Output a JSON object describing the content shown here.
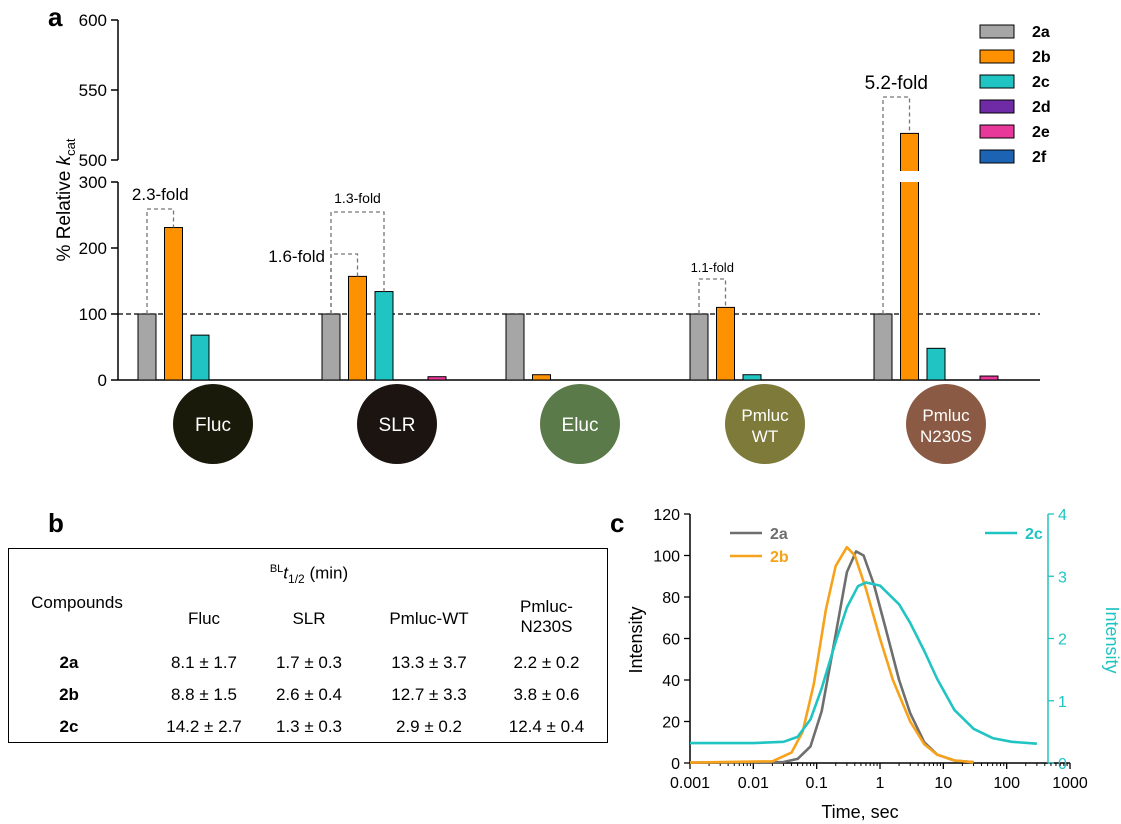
{
  "panel_labels": {
    "a": "a",
    "b": "b",
    "c": "c"
  },
  "chart_data": [
    {
      "type": "bar",
      "panel": "a",
      "categories": [
        "Fluc",
        "SLR",
        "Eluc",
        "Pmluc WT",
        "Pmluc N230S"
      ],
      "category_colors": [
        "#1a1a0a",
        "#1c1410",
        "#5a7a4a",
        "#7d7a3a",
        "#8a5a44"
      ],
      "series": [
        {
          "name": "2a",
          "color": "#a6a6a6",
          "values": [
            100,
            100,
            100,
            100,
            100
          ]
        },
        {
          "name": "2b",
          "color": "#fe9100",
          "values": [
            231,
            157,
            8,
            110,
            519
          ]
        },
        {
          "name": "2c",
          "color": "#20c4c2",
          "values": [
            68,
            134,
            0,
            8,
            48
          ]
        },
        {
          "name": "2d",
          "color": "#6f2aa6",
          "values": [
            0,
            0,
            0,
            0,
            0
          ]
        },
        {
          "name": "2e",
          "color": "#e8399b",
          "values": [
            0,
            5,
            0,
            0,
            6
          ]
        },
        {
          "name": "2f",
          "color": "#1d63b4",
          "values": [
            0,
            0,
            0,
            0,
            0
          ]
        }
      ],
      "ylabel_prefix": "% Relative ",
      "ylabel_italic": "k",
      "ylabel_sub": "cat",
      "y_ticks_lower": [
        "0",
        "100",
        "200",
        "300"
      ],
      "y_ticks_upper": [
        "500",
        "550",
        "600"
      ],
      "ylim_lower": [
        0,
        300
      ],
      "ylim_upper": [
        500,
        600
      ],
      "reference_line": 100,
      "annotations": [
        {
          "text": "2.3-fold",
          "category": 0,
          "from": "2a",
          "to": "2b"
        },
        {
          "text": "1.6-fold",
          "category": 1,
          "from": "2a",
          "to": "2b"
        },
        {
          "text": "1.3-fold",
          "category": 1,
          "from": "2a",
          "to": "2c"
        },
        {
          "text": "1.1-fold",
          "category": 3,
          "from": "2a",
          "to": "2b"
        },
        {
          "text": "5.2-fold",
          "category": 4,
          "from": "2a",
          "to": "2b"
        }
      ],
      "category_badges": [
        {
          "line1": "Fluc",
          "line2": ""
        },
        {
          "line1": "SLR",
          "line2": ""
        },
        {
          "line1": "Eluc",
          "line2": ""
        },
        {
          "line1": "Pmluc",
          "line2": "WT"
        },
        {
          "line1": "Pmluc",
          "line2": "N230S"
        }
      ]
    },
    {
      "type": "table",
      "panel": "b",
      "title_sup": "BL",
      "title_main": "t",
      "title_sub": "1/2",
      "title_unit": " (min)",
      "corner_label": "Compounds",
      "columns": [
        "Fluc",
        "SLR",
        "Pmluc-WT",
        "Pmluc-"
      ],
      "column_line2": [
        "",
        "",
        "",
        "N230S"
      ],
      "rows": [
        {
          "label": "2a",
          "cells": [
            "8.1 ± 1.7",
            "1.7 ± 0.3",
            "13.3 ± 3.7",
            "2.2 ± 0.2"
          ]
        },
        {
          "label": "2b",
          "cells": [
            "8.8 ± 1.5",
            "2.6 ± 0.4",
            "12.7 ± 3.3",
            "3.8 ± 0.6"
          ]
        },
        {
          "label": "2c",
          "cells": [
            "14.2 ± 2.7",
            "1.3 ± 0.3",
            "2.9 ± 0.2",
            "12.4 ± 0.4"
          ]
        }
      ]
    },
    {
      "type": "line",
      "panel": "c",
      "xlabel": "Time, sec",
      "ylabel_left": "Intensity",
      "ylabel_right": "Intensity",
      "x_scale": "log",
      "xlim": [
        0.001,
        1000
      ],
      "x_ticks": [
        "0.001",
        "0.01",
        "0.1",
        "1",
        "10",
        "100",
        "1000"
      ],
      "ylim_left": [
        0,
        120
      ],
      "y_ticks_left": [
        "0",
        "20",
        "40",
        "60",
        "80",
        "100",
        "120"
      ],
      "ylim_right": [
        0,
        4
      ],
      "y_ticks_right": [
        "0",
        "1",
        "2",
        "3",
        "4"
      ],
      "right_axis_color": "#20c4c2",
      "series": [
        {
          "name": "2a",
          "axis": "left",
          "color": "#6e6e6e",
          "x": [
            0.001,
            0.03,
            0.05,
            0.08,
            0.12,
            0.2,
            0.3,
            0.42,
            0.55,
            0.8,
            1.2,
            2,
            3,
            5,
            8,
            15,
            30
          ],
          "y": [
            0.2,
            0.5,
            2,
            8,
            25,
            62,
            92,
            102,
            100,
            86,
            66,
            40,
            24,
            10,
            4,
            1.2,
            0.4
          ]
        },
        {
          "name": "2b",
          "axis": "left",
          "color": "#f7a21b",
          "x": [
            0.001,
            0.02,
            0.04,
            0.06,
            0.09,
            0.14,
            0.2,
            0.3,
            0.4,
            0.6,
            1,
            1.6,
            3,
            5,
            8,
            15,
            30
          ],
          "y": [
            0.2,
            0.8,
            5,
            15,
            38,
            74,
            95,
            104,
            100,
            84,
            60,
            40,
            20,
            9,
            4,
            1.2,
            0.4
          ]
        },
        {
          "name": "2c",
          "axis": "right",
          "color": "#20c4c2",
          "x": [
            0.001,
            0.01,
            0.03,
            0.05,
            0.08,
            0.12,
            0.2,
            0.3,
            0.45,
            0.6,
            1,
            2,
            3,
            5,
            8,
            15,
            30,
            60,
            120,
            300
          ],
          "y": [
            0.32,
            0.32,
            0.34,
            0.42,
            0.7,
            1.2,
            1.95,
            2.5,
            2.84,
            2.9,
            2.85,
            2.55,
            2.25,
            1.8,
            1.35,
            0.85,
            0.55,
            0.4,
            0.34,
            0.31
          ]
        }
      ]
    }
  ]
}
